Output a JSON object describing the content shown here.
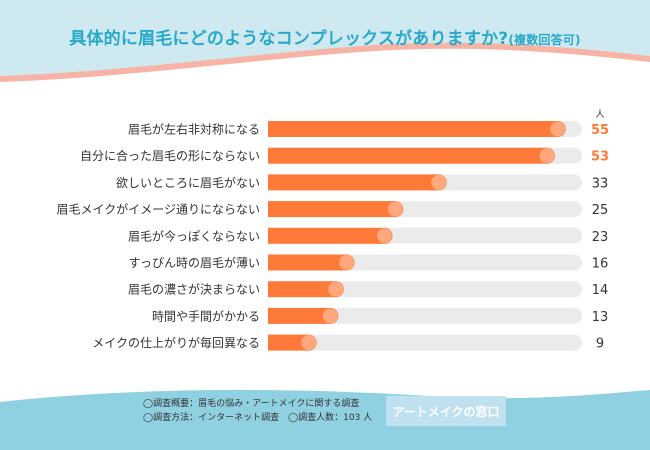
{
  "title": {
    "main": "具体的に眉毛にどのようなコンプレックスがありますか?",
    "sub": "(複数回答可)"
  },
  "chart_data": {
    "type": "bar",
    "orientation": "horizontal",
    "unit_label": "人",
    "categories": [
      "眉毛が左右非対称になる",
      "自分に合った眉毛の形にならない",
      "欲しいところに眉毛がない",
      "眉毛メイクがイメージ通りにならない",
      "眉毛が今っぽくならない",
      "すっぴん時の眉毛が薄い",
      "眉毛の濃さが決まらない",
      "時間や手間がかかる",
      "メイクの仕上がりが毎回異なる"
    ],
    "values": [
      55,
      53,
      33,
      25,
      23,
      16,
      14,
      13,
      9
    ],
    "xlim": [
      0,
      58
    ],
    "highlight_top": 2
  },
  "footer": {
    "note1": "◯調査概要：眉毛の悩み・アートメイクに関する調査",
    "note2": "◯調査方法：インターネット調査　◯調査人数：103 人",
    "brand": "アートメイクの窓口"
  },
  "colors": {
    "accent": "#ff7a38",
    "title": "#29a9c9",
    "track": "#ebebeb",
    "header_teal": "#cfe9f1",
    "header_pink": "#f6b3a6",
    "footer_teal": "#8fd0e1",
    "value_normal": "#333333"
  }
}
